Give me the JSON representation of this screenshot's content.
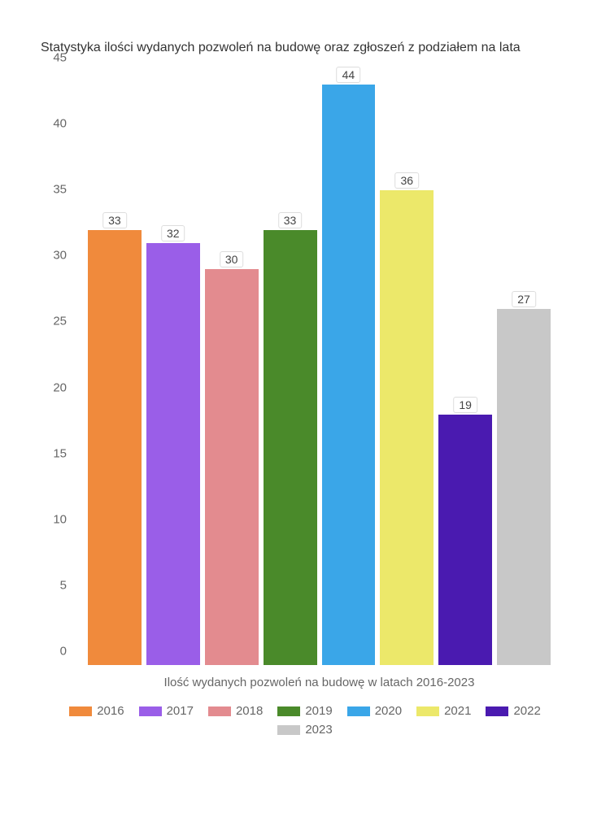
{
  "chart": {
    "type": "bar",
    "title": "Statystyka ilości wydanych pozwoleń na budowę oraz zgłoszeń z podziałem na lata",
    "xlabel": "Ilość wydanych pozwoleń na budowę w latach 2016-2023",
    "categories": [
      "2016",
      "2017",
      "2018",
      "2019",
      "2020",
      "2021",
      "2022",
      "2023"
    ],
    "values": [
      33,
      32,
      30,
      33,
      44,
      36,
      19,
      27
    ],
    "bar_colors": [
      "#f08a3c",
      "#9a5ee8",
      "#e38b8f",
      "#4a8a2a",
      "#3aa6e8",
      "#ece86a",
      "#4a1ab0",
      "#c8c8c8"
    ],
    "ylim": [
      0,
      45
    ],
    "ytick_step": 5,
    "yticks": [
      0,
      5,
      10,
      15,
      20,
      25,
      30,
      35,
      40,
      45
    ],
    "legend_labels": [
      "2016",
      "2017",
      "2018",
      "2019",
      "2020",
      "2021",
      "2022",
      "2023"
    ],
    "background_color": "#ffffff",
    "title_color": "#333333",
    "axis_text_color": "#666666",
    "label_box_bg": "#ffffff",
    "label_box_border": "#dddddd",
    "title_fontsize": 16,
    "axis_fontsize": 15,
    "bar_width": 0.9
  }
}
